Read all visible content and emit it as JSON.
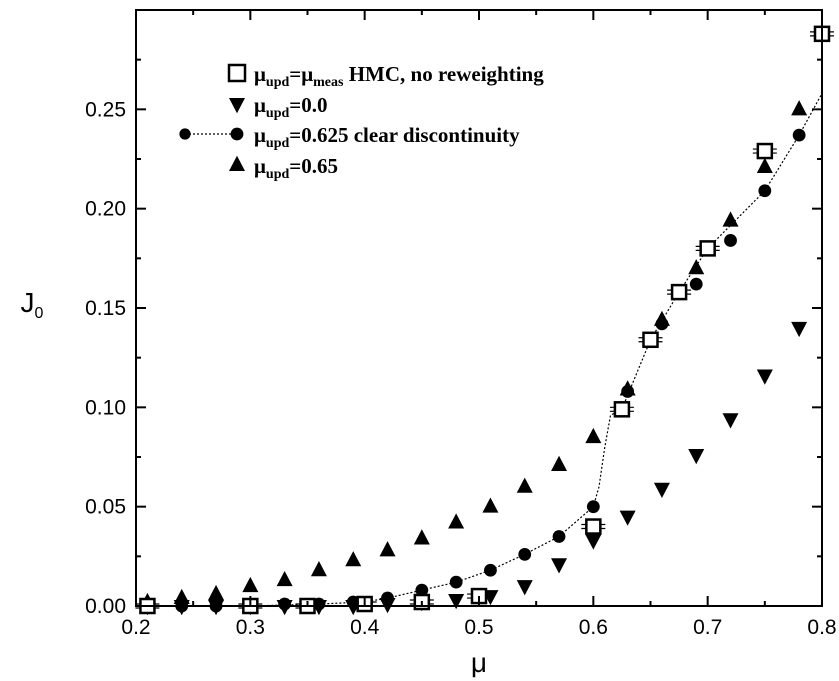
{
  "chart_data": {
    "type": "scatter",
    "xlabel": "μ",
    "ylabel": {
      "main": "J",
      "sub": "0"
    },
    "xlim": [
      0.2,
      0.8
    ],
    "ylim": [
      0.0,
      0.3
    ],
    "xticks": [
      "0.2",
      "0.3",
      "0.4",
      "0.5",
      "0.6",
      "0.7",
      "0.8"
    ],
    "yticks": [
      "0.00",
      "0.05",
      "0.10",
      "0.15",
      "0.20",
      "0.25"
    ],
    "grid": false,
    "legend_position": "top-left",
    "series": [
      {
        "id": "hmc",
        "marker": "open-square",
        "errorbars": true,
        "label": {
          "pre": "μ",
          "sub1": "upd",
          "mid": "=μ",
          "sub2": "meas",
          "post": " HMC, no reweighting"
        },
        "points": [
          [
            0.21,
            0.0
          ],
          [
            0.3,
            0.0
          ],
          [
            0.35,
            0.0
          ],
          [
            0.4,
            0.001
          ],
          [
            0.45,
            0.002
          ],
          [
            0.5,
            0.005
          ],
          [
            0.6,
            0.04
          ],
          [
            0.625,
            0.099
          ],
          [
            0.65,
            0.134
          ],
          [
            0.675,
            0.158
          ],
          [
            0.7,
            0.18
          ],
          [
            0.75,
            0.229
          ],
          [
            0.8,
            0.288
          ]
        ]
      },
      {
        "id": "mu0",
        "marker": "down-triangle",
        "label": {
          "pre": "μ",
          "sub1": "upd",
          "post": "=0.0"
        },
        "points": [
          [
            0.21,
            0.0
          ],
          [
            0.24,
            0.0
          ],
          [
            0.27,
            0.0
          ],
          [
            0.3,
            0.0
          ],
          [
            0.33,
            0.0
          ],
          [
            0.36,
            0.0
          ],
          [
            0.39,
            0.0
          ],
          [
            0.42,
            0.001
          ],
          [
            0.45,
            0.002
          ],
          [
            0.48,
            0.003
          ],
          [
            0.51,
            0.005
          ],
          [
            0.54,
            0.01
          ],
          [
            0.57,
            0.021
          ],
          [
            0.6,
            0.033
          ],
          [
            0.63,
            0.045
          ],
          [
            0.66,
            0.059
          ],
          [
            0.69,
            0.076
          ],
          [
            0.72,
            0.094
          ],
          [
            0.75,
            0.116
          ],
          [
            0.78,
            0.14
          ]
        ]
      },
      {
        "id": "mu0625",
        "marker": "circle",
        "line": "dotted",
        "label": {
          "pre": "μ",
          "sub1": "upd",
          "post": "=0.625 clear discontinuity"
        },
        "points": [
          [
            0.21,
            0.0
          ],
          [
            0.24,
            0.0
          ],
          [
            0.27,
            0.0
          ],
          [
            0.3,
            0.0
          ],
          [
            0.33,
            0.001
          ],
          [
            0.36,
            0.001
          ],
          [
            0.39,
            0.002
          ],
          [
            0.42,
            0.004
          ],
          [
            0.45,
            0.008
          ],
          [
            0.48,
            0.012
          ],
          [
            0.51,
            0.018
          ],
          [
            0.54,
            0.026
          ],
          [
            0.57,
            0.035
          ],
          [
            0.6,
            0.05
          ],
          [
            0.63,
            0.108
          ],
          [
            0.66,
            0.142
          ],
          [
            0.69,
            0.162
          ],
          [
            0.72,
            0.184
          ],
          [
            0.75,
            0.209
          ],
          [
            0.78,
            0.237
          ]
        ],
        "line_path": [
          [
            0.21,
            0.0
          ],
          [
            0.3,
            0.0
          ],
          [
            0.36,
            0.001
          ],
          [
            0.4,
            0.002
          ],
          [
            0.42,
            0.004
          ],
          [
            0.45,
            0.008
          ],
          [
            0.48,
            0.012
          ],
          [
            0.51,
            0.018
          ],
          [
            0.54,
            0.026
          ],
          [
            0.57,
            0.035
          ],
          [
            0.6,
            0.05
          ],
          [
            0.605,
            0.06
          ],
          [
            0.61,
            0.08
          ],
          [
            0.615,
            0.096
          ],
          [
            0.625,
            0.099
          ],
          [
            0.65,
            0.134
          ],
          [
            0.675,
            0.158
          ],
          [
            0.7,
            0.18
          ],
          [
            0.75,
            0.209
          ],
          [
            0.78,
            0.237
          ],
          [
            0.8,
            0.258
          ]
        ]
      },
      {
        "id": "mu065",
        "marker": "up-triangle",
        "label": {
          "pre": "μ",
          "sub1": "upd",
          "post": "=0.65"
        },
        "points": [
          [
            0.21,
            0.002
          ],
          [
            0.24,
            0.004
          ],
          [
            0.27,
            0.006
          ],
          [
            0.3,
            0.01
          ],
          [
            0.33,
            0.013
          ],
          [
            0.36,
            0.018
          ],
          [
            0.39,
            0.023
          ],
          [
            0.42,
            0.028
          ],
          [
            0.45,
            0.034
          ],
          [
            0.48,
            0.042
          ],
          [
            0.51,
            0.05
          ],
          [
            0.54,
            0.06
          ],
          [
            0.57,
            0.071
          ],
          [
            0.6,
            0.085
          ],
          [
            0.63,
            0.109
          ],
          [
            0.66,
            0.144
          ],
          [
            0.69,
            0.17
          ],
          [
            0.72,
            0.194
          ],
          [
            0.75,
            0.221
          ],
          [
            0.78,
            0.25
          ]
        ]
      }
    ]
  }
}
